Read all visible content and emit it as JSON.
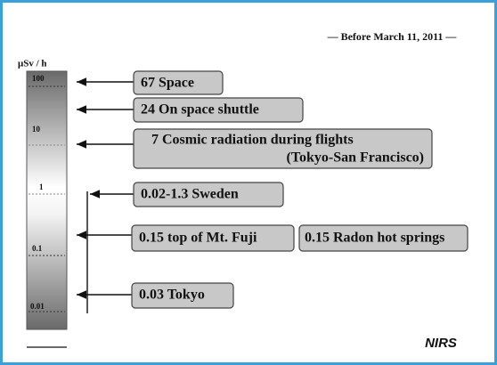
{
  "header": {
    "note": "— Before March 11, 2011 —",
    "unit": "μSv / h"
  },
  "scale": {
    "ticks": [
      "100",
      "10",
      "1",
      "0.1",
      "0.01"
    ]
  },
  "items": [
    {
      "label": "67  Space"
    },
    {
      "label": "24  On space shuttle"
    },
    {
      "label": "7  Cosmic radiation during flights",
      "sublabel": "(Tokyo-San Francisco)"
    },
    {
      "label": "0.02-1.3  Sweden"
    },
    {
      "label": "0.15  top of Mt. Fuji"
    },
    {
      "label": "0.15  Radon hot springs"
    },
    {
      "label": "0.03  Tokyo"
    }
  ],
  "footer": {
    "logo": "NIRS"
  }
}
